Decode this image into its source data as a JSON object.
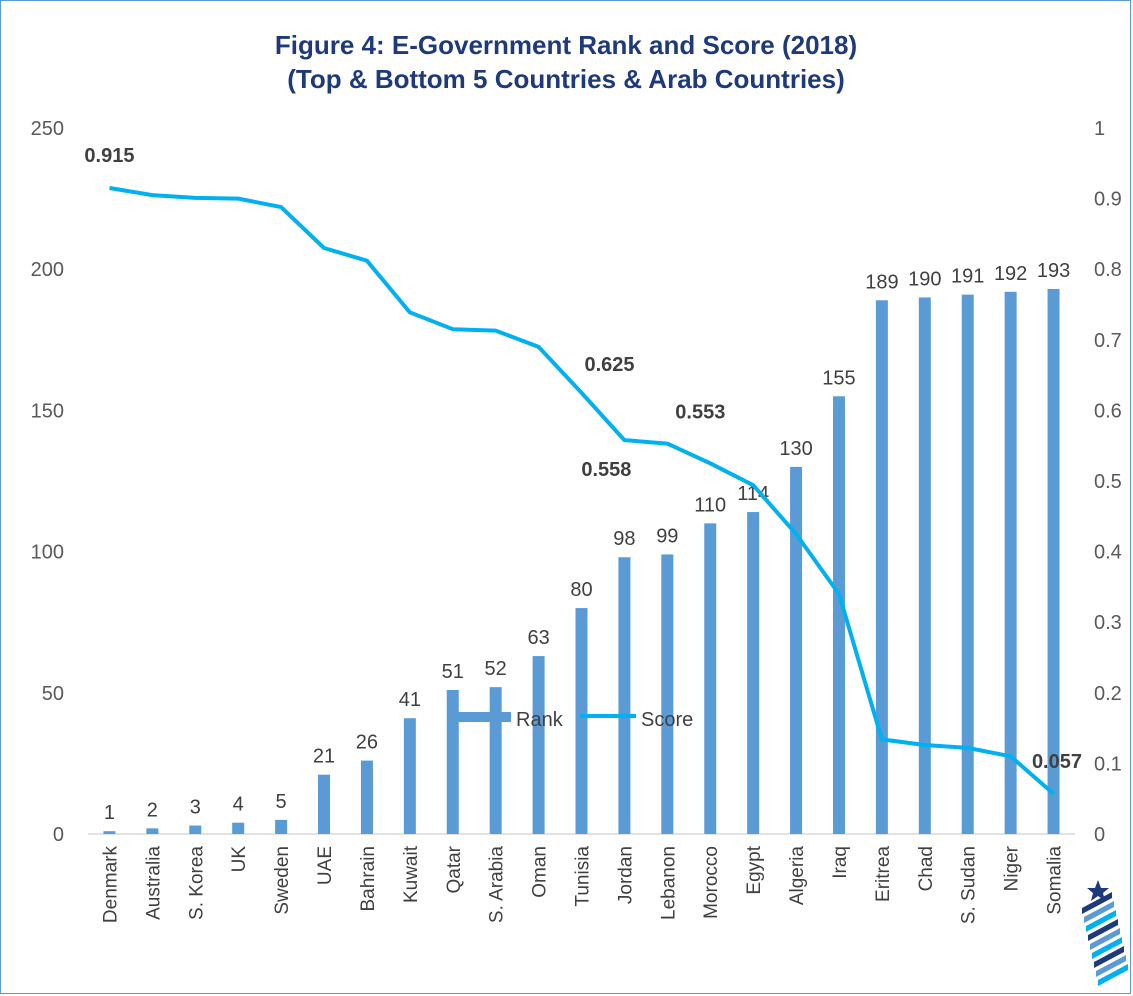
{
  "chart_data": {
    "type": "bar",
    "title": "Figure 4: E-Government Rank and Score (2018)",
    "subtitle": "(Top & Bottom 5 Countries & Arab Countries)",
    "categories": [
      "Denmark",
      "Australia",
      "S. Korea",
      "UK",
      "Sweden",
      "UAE",
      "Bahrain",
      "Kuwait",
      "Qatar",
      "S. Arabia",
      "Oman",
      "Tunisia",
      "Jordan",
      "Lebanon",
      "Morocco",
      "Egypt",
      "Algeria",
      "Iraq",
      "Eritrea",
      "Chad",
      "S. Sudan",
      "Niger",
      "Somalia"
    ],
    "series": [
      {
        "name": "Rank",
        "type": "bar",
        "axis": "left",
        "color": "#5b9bd5",
        "values": [
          1,
          2,
          3,
          4,
          5,
          21,
          26,
          41,
          51,
          52,
          63,
          80,
          98,
          99,
          110,
          114,
          130,
          155,
          189,
          190,
          191,
          192,
          193
        ]
      },
      {
        "name": "Score",
        "type": "line",
        "axis": "right",
        "color": "#00b0f0",
        "values": [
          0.915,
          0.905,
          0.901,
          0.9,
          0.888,
          0.83,
          0.812,
          0.739,
          0.715,
          0.713,
          0.69,
          0.625,
          0.558,
          0.553,
          0.525,
          0.494,
          0.425,
          0.34,
          0.134,
          0.126,
          0.122,
          0.11,
          0.057
        ],
        "labels": {
          "0": "0.915",
          "11": "0.625",
          "12": "0.558",
          "13": "0.553",
          "22": "0.057"
        }
      }
    ],
    "y_left": {
      "min": 0,
      "max": 250,
      "ticks": [
        "0",
        "50",
        "100",
        "150",
        "200",
        "250"
      ]
    },
    "y_right": {
      "min": 0,
      "max": 1,
      "ticks": [
        "0",
        "0.1",
        "0.2",
        "0.3",
        "0.4",
        "0.5",
        "0.6",
        "0.7",
        "0.8",
        "0.9",
        "1"
      ]
    },
    "grid": false,
    "legend": {
      "position": "bottom",
      "items": [
        "Rank",
        "Score"
      ]
    }
  },
  "logo": {
    "name": "institution-logo-icon",
    "colors": [
      "#1f3a7a",
      "#5b9bd5",
      "#00b0f0"
    ]
  }
}
